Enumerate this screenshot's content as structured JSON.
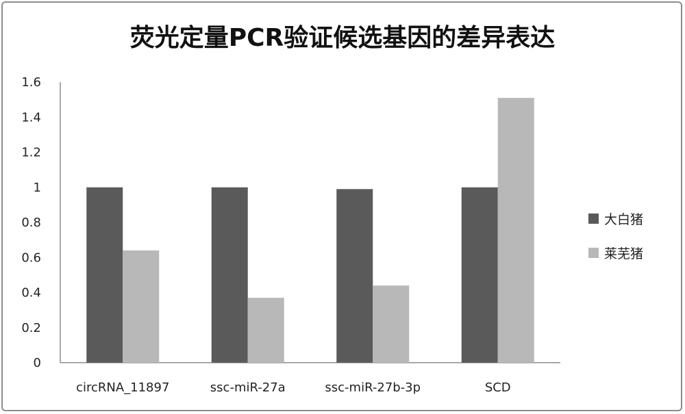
{
  "chart_data": {
    "type": "bar",
    "title": "荧光定量PCR验证候选基因的差异表达",
    "xlabel": "",
    "ylabel": "",
    "categories": [
      "circRNA_11897",
      "ssc-miR-27a",
      "ssc-miR-27b-3p",
      "SCD"
    ],
    "series": [
      {
        "name": "大白猪",
        "values": [
          1.0,
          1.0,
          0.99,
          1.0
        ],
        "color": "#5a5a5a"
      },
      {
        "name": "莱芜猪",
        "values": [
          0.64,
          0.37,
          0.44,
          1.51
        ],
        "color": "#b8b8b8"
      }
    ],
    "ylim": [
      0,
      1.6
    ],
    "yticks": [
      "0",
      "0.2",
      "0.4",
      "0.6",
      "0.8",
      "1",
      "1.2",
      "1.4",
      "1.6"
    ],
    "grid": false,
    "legend": "right"
  }
}
